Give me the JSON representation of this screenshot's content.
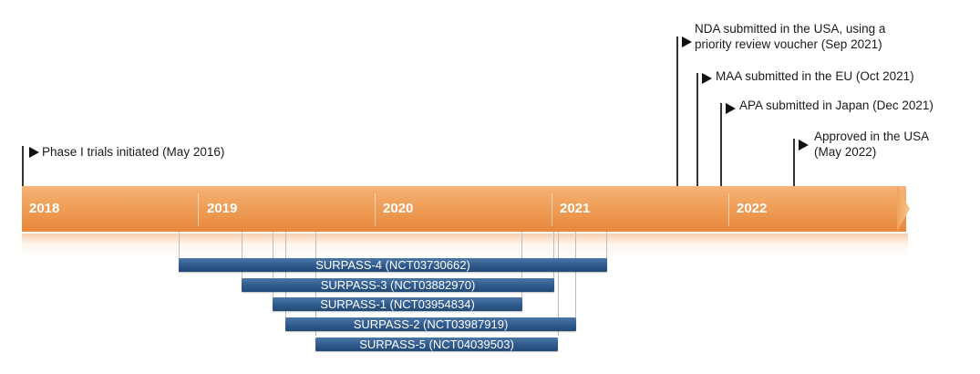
{
  "timeline": {
    "years": [
      "2018",
      "2019",
      "2020",
      "2021",
      "2022"
    ],
    "band_color": "#f0a35e"
  },
  "milestones": [
    {
      "lines": [
        "Phase I trials initiated (May 2016)"
      ]
    },
    {
      "lines": [
        "NDA submitted in the USA, using a",
        "priority review voucher (Sep 2021)"
      ]
    },
    {
      "lines": [
        "MAA submitted in the EU (Oct 2021)"
      ]
    },
    {
      "lines": [
        "APA submitted in Japan (Dec 2021)"
      ]
    },
    {
      "lines": [
        "Approved in the USA",
        "(May 2022)"
      ]
    }
  ],
  "trials": [
    {
      "label": "SURPASS-4 (NCT03730662)"
    },
    {
      "label": "SURPASS-3 (NCT03882970)"
    },
    {
      "label": "SURPASS-1 (NCT03954834)"
    },
    {
      "label": "SURPASS-2 (NCT03987919)"
    },
    {
      "label": "SURPASS-5 (NCT04039503)"
    }
  ],
  "colors": {
    "trial_bar": "#2f5a8c",
    "flag": "#111111"
  }
}
